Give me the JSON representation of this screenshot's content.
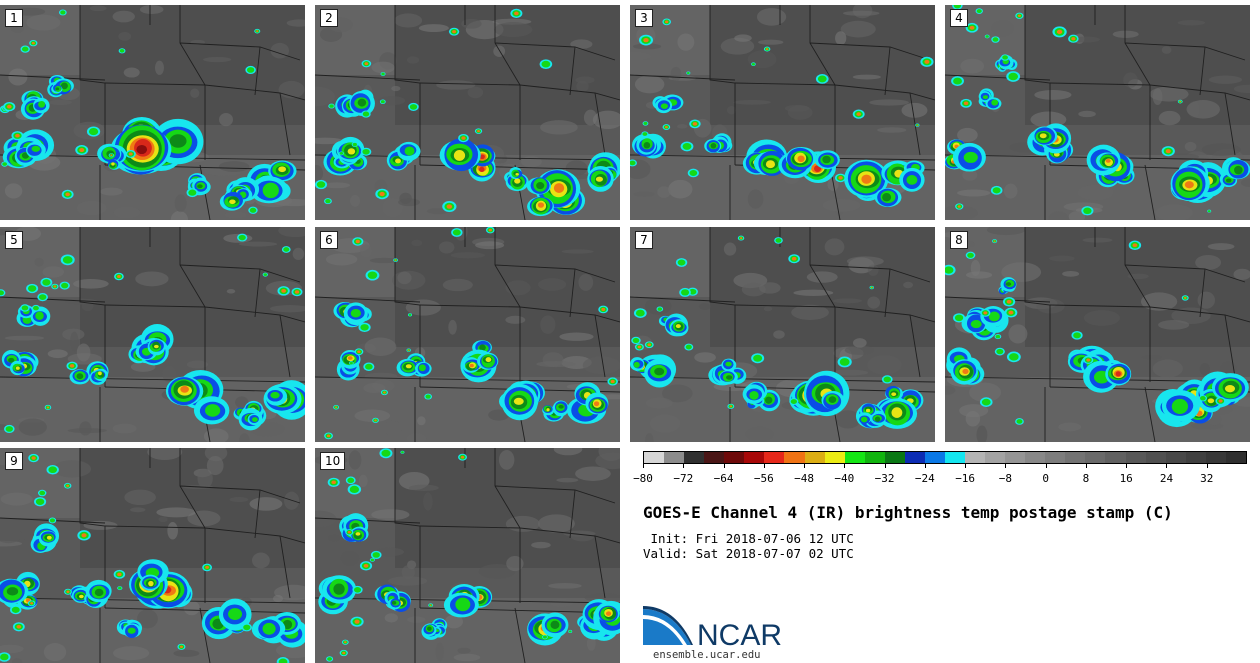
{
  "panels": [
    {
      "label": "1"
    },
    {
      "label": "2"
    },
    {
      "label": "3"
    },
    {
      "label": "4"
    },
    {
      "label": "5"
    },
    {
      "label": "6"
    },
    {
      "label": "7"
    },
    {
      "label": "8"
    },
    {
      "label": "9"
    },
    {
      "label": "10"
    }
  ],
  "colorbar": {
    "colors": [
      "#d6d6d6",
      "#8c8c8c",
      "#303030",
      "#4a1616",
      "#6e0a0a",
      "#a80808",
      "#e6281a",
      "#f07314",
      "#dcae14",
      "#ecec14",
      "#14e614",
      "#10b40e",
      "#0a7814",
      "#0c2cb4",
      "#0a78e6",
      "#14e6f0",
      "#b4b4b4",
      "#a3a3a3",
      "#959595",
      "#888888",
      "#7d7d7d",
      "#737373",
      "#6a6a6a",
      "#616161",
      "#585858",
      "#505050",
      "#484848",
      "#404040",
      "#383838",
      "#2f2f2f"
    ],
    "ticks": [
      "−80",
      "−72",
      "−64",
      "−56",
      "−48",
      "−40",
      "−32",
      "−24",
      "−16",
      "−8",
      "0",
      "8",
      "16",
      "24",
      "32"
    ],
    "min": -80,
    "max": 40
  },
  "title": "GOES-E Channel 4 (IR) brightness temp postage stamp (C)",
  "init": " Init: Fri 2018-07-06 12 UTC",
  "valid": "Valid: Sat 2018-07-07 02 UTC",
  "logo": {
    "text": "NCAR",
    "color": "#0f3a66",
    "accent": "#1a7ac8"
  },
  "footer": "ensemble.ucar.edu",
  "storm_colors": {
    "cyan": "#18e6ee",
    "blue": "#0a4ee6",
    "green": "#16d816",
    "darkgreen": "#0d8a18",
    "yellow": "#e8e414",
    "orange": "#f07a14",
    "red": "#d8281a",
    "darkred": "#8a0e0e"
  }
}
